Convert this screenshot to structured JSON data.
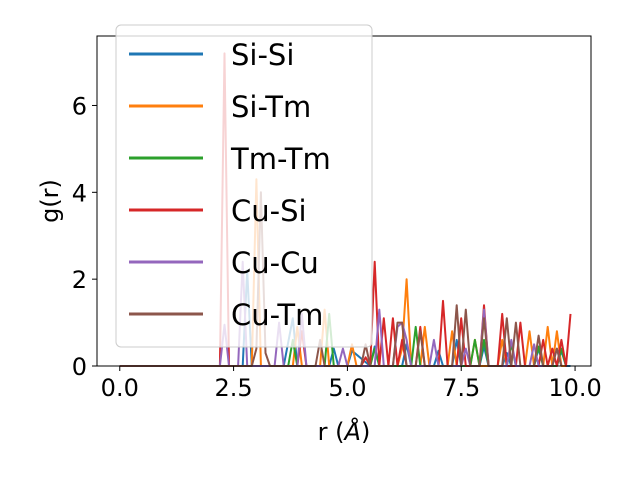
{
  "chart_data": {
    "type": "line",
    "xlabel_main": "r (",
    "xlabel_unit": "Å",
    "xlabel_close": ")",
    "ylabel": "g(r)",
    "xlim": [
      -0.5,
      10.35
    ],
    "ylim": [
      0,
      7.6
    ],
    "xticks": [
      0.0,
      2.5,
      5.0,
      7.5,
      10.0
    ],
    "xtick_labels": [
      "0.0",
      "2.5",
      "5.0",
      "7.5",
      "10.0"
    ],
    "yticks": [
      0,
      2,
      4,
      6
    ],
    "ytick_labels": [
      "0",
      "2",
      "4",
      "6"
    ],
    "legend_position": "upper-left",
    "series": [
      {
        "name": "Si-Si",
        "color": "#1f77b4",
        "x": [
          0.0,
          2.0,
          2.7,
          2.8,
          2.9,
          3.6,
          3.8,
          3.9,
          4.0,
          4.6,
          4.7,
          4.8,
          5.0,
          5.1,
          5.5,
          5.6,
          5.7,
          5.8,
          6.2,
          6.3,
          6.4,
          6.9,
          7.0,
          7.1,
          7.3,
          7.4,
          7.5,
          7.9,
          8.0,
          8.1,
          8.4,
          8.5,
          8.6,
          9.1,
          9.2,
          9.3,
          9.6,
          9.7,
          9.8,
          9.9
        ],
        "y": [
          0,
          0,
          0,
          2.2,
          0,
          0,
          1.1,
          0,
          0,
          0,
          0.4,
          0,
          0,
          0.35,
          0,
          0.45,
          0,
          0,
          0,
          0.5,
          0,
          0,
          0.35,
          0,
          0,
          0.6,
          0,
          0,
          0.45,
          0,
          0,
          0.3,
          0,
          0,
          0.4,
          0,
          0,
          0.35,
          0,
          0
        ]
      },
      {
        "name": "Si-Tm",
        "color": "#ff7f0e",
        "x": [
          0.0,
          2.8,
          2.9,
          3.0,
          3.1,
          3.8,
          3.9,
          4.0,
          4.4,
          4.5,
          4.6,
          5.0,
          5.1,
          5.2,
          6.1,
          6.2,
          6.3,
          6.4,
          6.6,
          6.7,
          6.8,
          7.2,
          7.3,
          7.4,
          7.7,
          7.8,
          7.9,
          8.3,
          8.4,
          8.5,
          8.9,
          9.0,
          9.1,
          9.3,
          9.4,
          9.5,
          9.6,
          9.7,
          9.8
        ],
        "y": [
          0,
          0,
          0,
          4.3,
          0,
          0,
          0.9,
          0,
          0,
          1.3,
          0,
          0,
          0.5,
          0,
          0,
          0.4,
          2.0,
          0,
          0,
          0.9,
          0,
          0,
          0.8,
          0,
          0,
          0.6,
          0,
          0,
          0.6,
          0,
          0,
          0.8,
          0,
          0,
          0.9,
          0,
          0.8,
          0,
          0
        ]
      },
      {
        "name": "Tm-Tm",
        "color": "#2ca02c",
        "x": [
          0.0,
          3.7,
          3.8,
          3.9,
          4.5,
          4.6,
          4.7,
          5.5,
          5.6,
          5.7,
          6.4,
          6.5,
          6.6,
          7.7,
          7.8,
          7.9,
          8.0,
          8.1,
          8.5,
          8.6,
          8.7,
          9.1,
          9.2,
          9.3,
          9.6,
          9.7,
          9.8
        ],
        "y": [
          0,
          0,
          0.6,
          0,
          0,
          1.2,
          0,
          0,
          0.4,
          0,
          0,
          0.9,
          0,
          0,
          0.6,
          0,
          0.6,
          0,
          0,
          0.5,
          0,
          0,
          0.45,
          0,
          0,
          0.4,
          0
        ]
      },
      {
        "name": "Cu-Si",
        "color": "#d62728",
        "x": [
          0.0,
          2.1,
          2.2,
          2.3,
          2.4,
          2.5,
          3.9,
          4.0,
          4.1,
          5.3,
          5.4,
          5.5,
          5.6,
          5.7,
          5.8,
          5.9,
          6.0,
          6.1,
          6.2,
          6.3,
          6.5,
          6.6,
          6.7,
          7.0,
          7.1,
          7.2,
          7.4,
          7.5,
          7.6,
          7.9,
          8.0,
          8.1,
          8.3,
          8.4,
          8.5,
          8.7,
          8.8,
          8.9,
          9.2,
          9.3,
          9.4,
          9.5,
          9.6,
          9.7,
          9.8,
          9.9
        ],
        "y": [
          0,
          0,
          0,
          7.2,
          0,
          0,
          0,
          0.8,
          0,
          0,
          0.2,
          0,
          2.4,
          0,
          1.1,
          0,
          1.1,
          0,
          0.6,
          0,
          0,
          0.9,
          0,
          0,
          1.5,
          0,
          0,
          1.1,
          0,
          0,
          1.4,
          0,
          0,
          1.2,
          0,
          0,
          1.0,
          0,
          0,
          0.6,
          0,
          0.4,
          0,
          0.6,
          0,
          1.2
        ]
      },
      {
        "name": "Cu-Cu",
        "color": "#9467bd",
        "x": [
          0.0,
          2.2,
          2.3,
          2.4,
          2.6,
          2.7,
          2.8,
          3.4,
          3.5,
          3.6,
          3.9,
          4.0,
          4.1,
          4.8,
          4.9,
          5.0,
          5.6,
          5.7,
          5.8,
          6.0,
          6.1,
          6.2,
          6.3,
          6.4,
          6.8,
          6.9,
          7.0,
          7.5,
          7.6,
          7.7,
          7.9,
          8.0,
          8.1,
          8.5,
          8.6,
          8.7,
          9.0,
          9.1,
          9.2,
          9.5,
          9.6,
          9.7
        ],
        "y": [
          0,
          0,
          0.95,
          0,
          0,
          2.4,
          0,
          0,
          1.0,
          0,
          0,
          1.2,
          0,
          0,
          0.4,
          0,
          0,
          1.3,
          0,
          0,
          0.9,
          1.0,
          0.6,
          0,
          0,
          0.6,
          0,
          0,
          0.4,
          0,
          0,
          1.3,
          0,
          0,
          0.6,
          0,
          0,
          0.5,
          0,
          0,
          0.4,
          0
        ]
      },
      {
        "name": "Cu-Tm",
        "color": "#8c564b",
        "x": [
          0.0,
          2.9,
          3.0,
          3.1,
          3.2,
          3.3,
          4.3,
          4.4,
          4.5,
          5.3,
          5.4,
          5.5,
          6.0,
          6.1,
          6.2,
          6.3,
          6.5,
          6.6,
          6.7,
          7.3,
          7.4,
          7.5,
          7.6,
          7.7,
          7.9,
          8.0,
          8.1,
          8.4,
          8.5,
          8.6,
          8.7,
          8.8,
          9.1,
          9.2,
          9.3,
          9.5,
          9.6,
          9.7
        ],
        "y": [
          0,
          0,
          0.4,
          4.0,
          0.3,
          0,
          0,
          0.6,
          0,
          0,
          0.5,
          0,
          0,
          1.0,
          1.0,
          0,
          0,
          0.8,
          0,
          0,
          1.4,
          0,
          1.3,
          0,
          0,
          1.1,
          0,
          0,
          1.1,
          0,
          1.0,
          0,
          0,
          0.7,
          0,
          0,
          0.4,
          0
        ]
      }
    ]
  }
}
